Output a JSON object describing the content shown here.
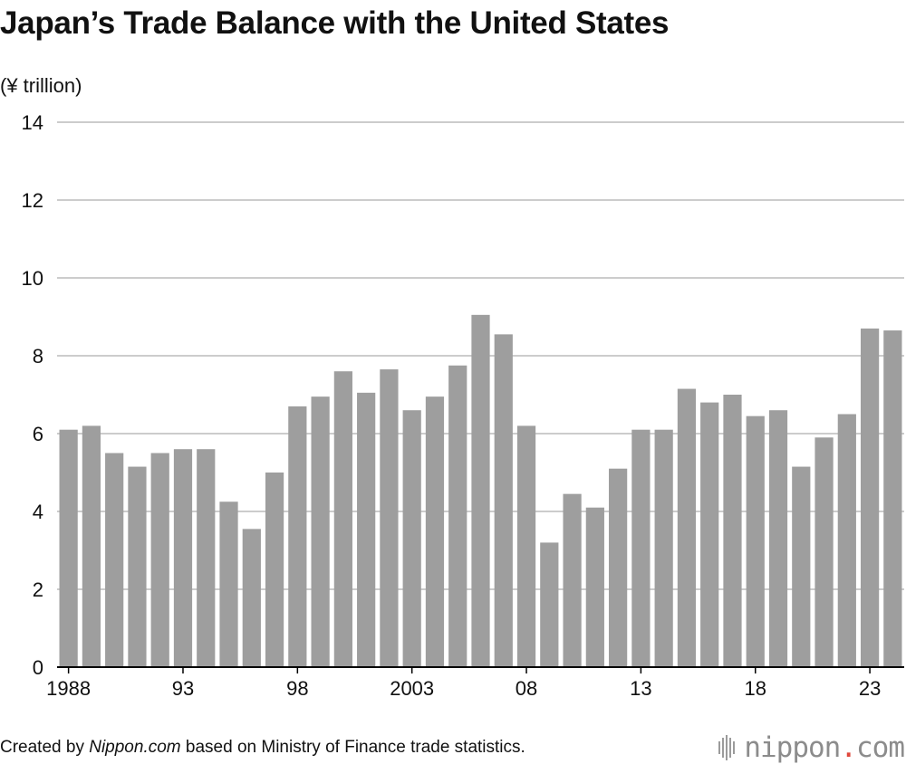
{
  "title": "Japan’s Trade Balance with the United States",
  "unit_label": "(¥ trillion)",
  "footer": {
    "prefix": "Created by ",
    "source_site": "Nippon.com",
    "suffix": " based on Ministry of Finance trade statistics."
  },
  "logo": {
    "name": "nippon",
    "dot": ".",
    "tld": "com",
    "dot_color": "#e0483c"
  },
  "colors": {
    "bar": "#9e9e9e",
    "grid": "#cccccc",
    "axis": "#000000"
  },
  "chart_data": {
    "type": "bar",
    "x": [
      1988,
      1989,
      1990,
      1991,
      1992,
      1993,
      1994,
      1995,
      1996,
      1997,
      1998,
      1999,
      2000,
      2001,
      2002,
      2003,
      2004,
      2005,
      2006,
      2007,
      2008,
      2009,
      2010,
      2011,
      2012,
      2013,
      2014,
      2015,
      2016,
      2017,
      2018,
      2019,
      2020,
      2021,
      2022,
      2023,
      2024
    ],
    "values": [
      6.1,
      6.2,
      5.5,
      5.15,
      5.5,
      5.6,
      5.6,
      4.25,
      3.55,
      5.0,
      6.7,
      6.95,
      7.6,
      7.05,
      7.65,
      6.6,
      6.95,
      7.75,
      9.05,
      8.55,
      6.2,
      3.2,
      4.45,
      4.1,
      5.1,
      6.1,
      6.1,
      7.15,
      6.8,
      7.0,
      6.45,
      6.6,
      5.15,
      5.9,
      6.5,
      8.7,
      8.65
    ],
    "x_tick_labels": [
      {
        "x": 1988,
        "label": "1988"
      },
      {
        "x": 1993,
        "label": "93"
      },
      {
        "x": 1998,
        "label": "98"
      },
      {
        "x": 2003,
        "label": "2003"
      },
      {
        "x": 2008,
        "label": "08"
      },
      {
        "x": 2013,
        "label": "13"
      },
      {
        "x": 2018,
        "label": "18"
      },
      {
        "x": 2023,
        "label": "23"
      }
    ],
    "y_ticks": [
      0,
      2,
      4,
      6,
      8,
      10,
      12,
      14
    ],
    "ylim": [
      0,
      14
    ],
    "grid": true,
    "legend": "none"
  }
}
